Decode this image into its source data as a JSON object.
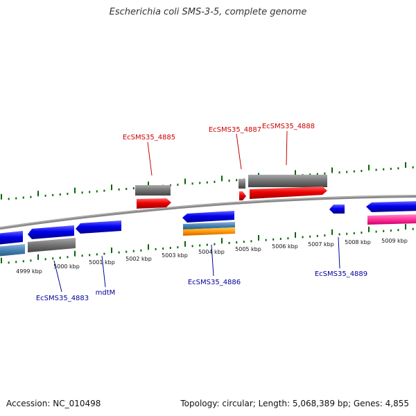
{
  "title": "Escherichia coli SMS-3-5, complete genome",
  "footer": {
    "accession": "Accession: NC_010498",
    "summary": "Topology: circular; Length: 5,068,389 bp; Genes: 4,855"
  },
  "colors": {
    "forward_gene": "#ee0000",
    "reverse_gene": "#0000ee",
    "pseudo_gene": "#777777",
    "steel_gene": "#4682b4",
    "orange_gene": "#ff9900",
    "pink_gene": "#ff3399",
    "tick": "#006600",
    "backbone": "#888888",
    "forward_label": "#cc0000",
    "reverse_label": "#000099"
  },
  "scale": {
    "ticks": [
      {
        "label": "4999 kbp",
        "value": 4999
      },
      {
        "label": "5000 kbp",
        "value": 5000
      },
      {
        "label": "5001 kbp",
        "value": 5001
      },
      {
        "label": "5002 kbp",
        "value": 5002
      },
      {
        "label": "5003 kbp",
        "value": 5003
      },
      {
        "label": "5004 kbp",
        "value": 5004
      },
      {
        "label": "5005 kbp",
        "value": 5005
      },
      {
        "label": "5006 kbp",
        "value": 5006
      },
      {
        "label": "5007 kbp",
        "value": 5007
      },
      {
        "label": "5008 kbp",
        "value": 5008
      },
      {
        "label": "5009 kbp",
        "value": 5009
      }
    ]
  },
  "gene_labels": {
    "forward": [
      "EcSMS35_4885",
      "EcSMS35_4887",
      "EcSMS35_4888"
    ],
    "reverse": [
      "EcSMS35_4883",
      "mdtM",
      "EcSMS35_4886",
      "EcSMS35_4889"
    ]
  }
}
